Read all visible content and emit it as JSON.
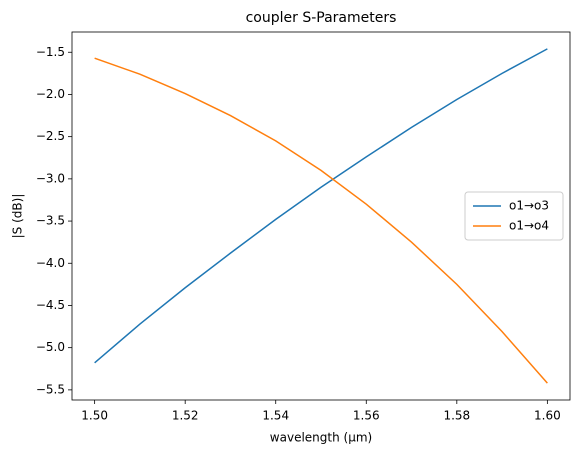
{
  "chart_data": {
    "type": "line",
    "title": "coupler S-Parameters",
    "x_label": "wavelength (µm)",
    "y_label": "|S (dB)|",
    "x": [
      1.5,
      1.51,
      1.52,
      1.53,
      1.54,
      1.55,
      1.56,
      1.57,
      1.58,
      1.59,
      1.6
    ],
    "series": [
      {
        "name": "o1→o3",
        "color": "#1f77b4",
        "values": [
          -5.18,
          -4.72,
          -4.29,
          -3.88,
          -3.48,
          -3.1,
          -2.74,
          -2.39,
          -2.06,
          -1.75,
          -1.46
        ]
      },
      {
        "name": "o1→o4",
        "color": "#ff7f0e",
        "values": [
          -1.57,
          -1.76,
          -1.99,
          -2.25,
          -2.55,
          -2.9,
          -3.3,
          -3.75,
          -4.25,
          -4.81,
          -5.42
        ]
      }
    ],
    "xlim": [
      1.495,
      1.605
    ],
    "xticks": [
      {
        "value": 1.5,
        "label": "1.50"
      },
      {
        "value": 1.52,
        "label": "1.52"
      },
      {
        "value": 1.54,
        "label": "1.54"
      },
      {
        "value": 1.56,
        "label": "1.56"
      },
      {
        "value": 1.58,
        "label": "1.58"
      },
      {
        "value": 1.6,
        "label": "1.60"
      }
    ],
    "ylim": [
      -5.62,
      -1.26
    ],
    "yticks": [
      {
        "value": -5.5,
        "label": "−5.5"
      },
      {
        "value": -5.0,
        "label": "−5.0"
      },
      {
        "value": -4.5,
        "label": "−4.5"
      },
      {
        "value": -4.0,
        "label": "−4.0"
      },
      {
        "value": -3.5,
        "label": "−3.5"
      },
      {
        "value": -3.0,
        "label": "−3.0"
      },
      {
        "value": -2.5,
        "label": "−2.5"
      },
      {
        "value": -2.0,
        "label": "−2.0"
      },
      {
        "value": -1.5,
        "label": "−1.5"
      }
    ],
    "legend": "center right",
    "grid": false
  }
}
